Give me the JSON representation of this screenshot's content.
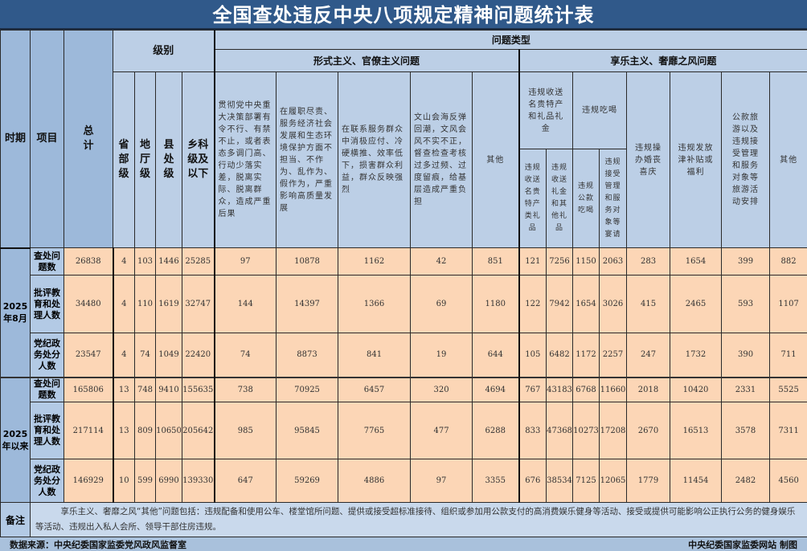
{
  "title": "全国查处违反中央八项规定精神问题统计表",
  "headers": {
    "period": "时期",
    "item": "项目",
    "total": "总计",
    "level": "级别",
    "levels": [
      "省部级",
      "地厅级",
      "县处级",
      "乡科级及以下"
    ],
    "problem_type": "问题类型",
    "formalism": "形式主义、官僚主义问题",
    "hedonism": "享乐主义、奢靡之风问题",
    "formalism_cols": [
      "贯彻党中央重大决策部署有令不行、有禁不止，或者表态多调门高、行动少落实差，脱离实际、脱离群众，造成严重后果",
      "在履职尽责、服务经济社会发展和生态环境保护方面不担当、不作为、乱作为、假作为，严重影响高质量发展",
      "在联系服务群众中消极应付、冷硬横推、效率低下，损害群众利益，群众反映强烈",
      "文山会海反弹回潮，文风会风不实不正，督查检查考核过多过频、过度留痕，给基层造成严重负担",
      "其他"
    ],
    "gifts": "违规收送名贵特产和礼品礼金",
    "gifts_sub": [
      "违规收送名贵特产类礼品",
      "违规收送礼金和其他礼品"
    ],
    "dining": "违规吃喝",
    "dining_sub": [
      "违规公款吃喝",
      "违规接受管理和服务对象等宴请"
    ],
    "hedonism_cols": [
      "违规操办婚丧喜庆",
      "违规发放津补贴或福利",
      "公款旅游以及违规接受管理和服务对象等旅游活动安排",
      "其他"
    ]
  },
  "periods": [
    {
      "label": "2025年8月",
      "rows": [
        {
          "item": "查处问题数",
          "values": [
            "26838",
            "4",
            "103",
            "1446",
            "25285",
            "97",
            "10878",
            "1162",
            "42",
            "851",
            "121",
            "7256",
            "1150",
            "2063",
            "283",
            "1654",
            "399",
            "882"
          ]
        },
        {
          "item": "批评教育和处理人数",
          "values": [
            "34480",
            "4",
            "110",
            "1619",
            "32747",
            "144",
            "14397",
            "1366",
            "69",
            "1180",
            "122",
            "7942",
            "1654",
            "3026",
            "415",
            "2465",
            "593",
            "1107"
          ]
        },
        {
          "item": "党纪政务处分人数",
          "values": [
            "23547",
            "4",
            "74",
            "1049",
            "22420",
            "74",
            "8873",
            "841",
            "19",
            "644",
            "105",
            "6482",
            "1172",
            "2257",
            "247",
            "1732",
            "390",
            "711"
          ]
        }
      ]
    },
    {
      "label": "2025年以来",
      "rows": [
        {
          "item": "查处问题数",
          "values": [
            "165806",
            "13",
            "748",
            "9410",
            "155635",
            "738",
            "70925",
            "6457",
            "320",
            "4694",
            "767",
            "43183",
            "6768",
            "11660",
            "2018",
            "10420",
            "2331",
            "5525"
          ]
        },
        {
          "item": "批评教育和处理人数",
          "values": [
            "217114",
            "13",
            "809",
            "10650",
            "205642",
            "985",
            "95845",
            "7765",
            "477",
            "6288",
            "833",
            "47368",
            "10273",
            "17208",
            "2670",
            "16513",
            "3578",
            "7311"
          ]
        },
        {
          "item": "党纪政务处分人数",
          "values": [
            "146929",
            "10",
            "599",
            "6990",
            "139330",
            "647",
            "59269",
            "4886",
            "97",
            "3355",
            "676",
            "38534",
            "7125",
            "12065",
            "1779",
            "11454",
            "2482",
            "4560"
          ]
        }
      ]
    }
  ],
  "remark": {
    "label": "备注",
    "text": "享乐主义、奢靡之风“其他”问题包括：违规配备和使用公车、楼堂馆所问题、提供或接受超标准接待、组织或参加用公款支付的高消费娱乐健身等活动、接受或提供可能影响公正执行公务的健身娱乐等活动、违规出入私人会所、领导干部住房违规。"
  },
  "footer": {
    "source": "数据来源：中央纪委国家监委党风政风监督室",
    "credit": "中央纪委国家监委网站 制图"
  },
  "colors": {
    "title_bg": "#30598a",
    "header_bg": "#bccfe6",
    "data_bg": "#fcd6b6"
  }
}
